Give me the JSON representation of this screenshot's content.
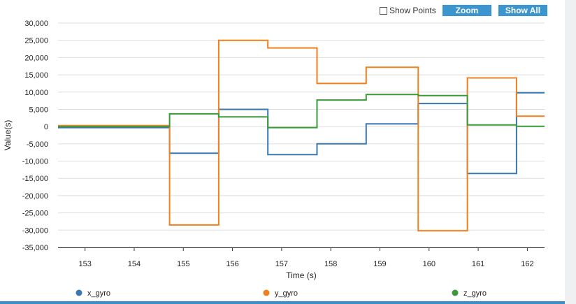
{
  "toolbar": {
    "show_points_label": "Show Points",
    "show_points_checked": false,
    "zoom_label": "Zoom",
    "show_all_label": "Show All",
    "button_color": "#3b95cf"
  },
  "chart_data": {
    "type": "line",
    "step": true,
    "title": "",
    "xlabel": "Time (s)",
    "ylabel": "Value(s)",
    "xlim": [
      152.45,
      162.35
    ],
    "ylim": [
      -35000,
      30000
    ],
    "x_ticks": [
      153,
      154,
      155,
      156,
      157,
      158,
      159,
      160,
      161,
      162
    ],
    "x_tick_labels": [
      "153",
      "154",
      "155",
      "156",
      "157",
      "158",
      "159",
      "160",
      "161",
      "162"
    ],
    "y_ticks": [
      30000,
      25000,
      20000,
      15000,
      10000,
      5000,
      0,
      -5000,
      -10000,
      -15000,
      -20000,
      -25000,
      -30000,
      -35000
    ],
    "y_tick_labels": [
      "30,000",
      "25,000",
      "20,000",
      "15,000",
      "10,000",
      "5,000",
      "0",
      "-5,000",
      "-10,000",
      "-15,000",
      "-20,000",
      "-25,000",
      "-30,000",
      "-35,000"
    ],
    "grid": true,
    "legend_position": "bottom",
    "step_x": [
      152.45,
      154.72,
      155.72,
      156.72,
      157.72,
      158.72,
      159.78,
      160.78,
      161.78,
      162.35
    ],
    "series": [
      {
        "name": "x_gyro",
        "color": "#3a78b0",
        "values": [
          -300,
          -7700,
          5000,
          -8100,
          -5000,
          800,
          6700,
          -13600,
          9800
        ]
      },
      {
        "name": "y_gyro",
        "color": "#f07f1e",
        "values": [
          300,
          -28500,
          25000,
          22800,
          12500,
          17200,
          -30200,
          14100,
          3000
        ]
      },
      {
        "name": "z_gyro",
        "color": "#3a9a3a",
        "values": [
          0,
          3700,
          2800,
          -300,
          7700,
          9300,
          9000,
          500,
          100
        ]
      }
    ]
  }
}
